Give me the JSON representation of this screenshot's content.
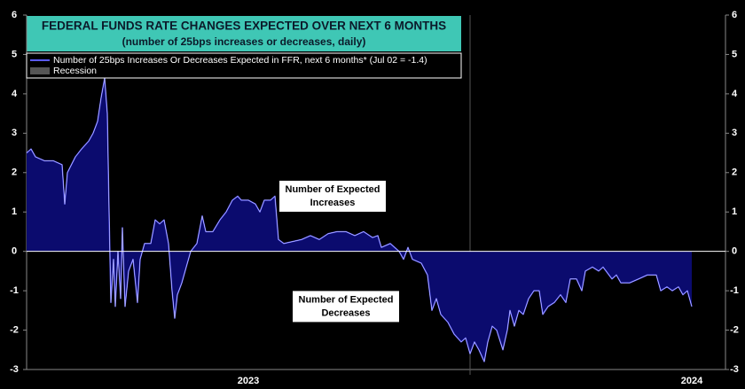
{
  "chart_data": {
    "type": "area",
    "title": "FEDERAL FUNDS RATE CHANGES EXPECTED OVER NEXT 6 MONTHS",
    "subtitle": "(number of 25bps increases or decreases, daily)",
    "x": [
      2023,
      2023.01,
      2023.02,
      2023.04,
      2023.06,
      2023.08,
      2023.086,
      2023.092,
      2023.11,
      2023.124,
      2023.14,
      2023.15,
      2023.16,
      2023.168,
      2023.176,
      2023.182,
      2023.186,
      2023.19,
      2023.196,
      2023.2,
      2023.206,
      2023.212,
      2023.216,
      2023.222,
      2023.23,
      2023.24,
      2023.25,
      2023.256,
      2023.266,
      2023.28,
      2023.29,
      2023.3,
      2023.31,
      2023.32,
      2023.328,
      2023.334,
      2023.34,
      2023.35,
      2023.36,
      2023.37,
      2023.384,
      2023.396,
      2023.404,
      2023.42,
      2023.436,
      2023.45,
      2023.464,
      2023.476,
      2023.484,
      2023.5,
      2023.516,
      2023.526,
      2023.536,
      2023.55,
      2023.56,
      2023.568,
      2023.58,
      2023.6,
      2023.62,
      2023.64,
      2023.66,
      2023.68,
      2023.7,
      2023.72,
      2023.74,
      2023.76,
      2023.78,
      2023.792,
      2023.8,
      2023.82,
      2023.84,
      2023.85,
      2023.86,
      2023.87,
      2023.89,
      2023.904,
      2023.914,
      2023.924,
      2023.934,
      2023.95,
      2023.964,
      2023.98,
      2023.99,
      2024,
      2024.01,
      2024.02,
      2024.032,
      2024.04,
      2024.05,
      2024.06,
      2024.074,
      2024.084,
      2024.09,
      2024.1,
      2024.11,
      2024.12,
      2024.132,
      2024.144,
      2024.156,
      2024.164,
      2024.176,
      2024.19,
      2024.204,
      2024.216,
      2024.226,
      2024.24,
      2024.252,
      2024.26,
      2024.276,
      2024.29,
      2024.3,
      2024.32,
      2024.33,
      2024.34,
      2024.36,
      2024.38,
      2024.4,
      2024.42,
      2024.43,
      2024.444,
      2024.456,
      2024.47,
      2024.48,
      2024.49,
      2024.5
    ],
    "series": [
      {
        "name": "Number of 25bps Increases Or Decreases Expected in FFR, next 6 months* (Jul 02 = -1.4)",
        "color": "#5a5aff",
        "fill": "#0b0b6e",
        "values": [
          2.5,
          2.6,
          2.4,
          2.3,
          2.3,
          2.2,
          1.2,
          2.0,
          2.4,
          2.6,
          2.8,
          3.0,
          3.3,
          3.9,
          4.4,
          3.5,
          1.0,
          -1.3,
          -0.2,
          -1.4,
          0.0,
          -1.2,
          0.6,
          -1.4,
          -0.5,
          -0.2,
          -1.3,
          -0.2,
          0.2,
          0.2,
          0.8,
          0.7,
          0.8,
          0.2,
          -1.0,
          -1.7,
          -1.1,
          -0.8,
          -0.4,
          0.0,
          0.2,
          0.9,
          0.5,
          0.5,
          0.8,
          1.0,
          1.3,
          1.4,
          1.3,
          1.3,
          1.2,
          1.0,
          1.3,
          1.3,
          1.4,
          0.3,
          0.2,
          0.25,
          0.3,
          0.4,
          0.3,
          0.45,
          0.5,
          0.5,
          0.4,
          0.5,
          0.35,
          0.4,
          0.1,
          0.2,
          0.0,
          -0.2,
          0.1,
          -0.2,
          -0.3,
          -0.6,
          -1.5,
          -1.2,
          -1.6,
          -1.8,
          -2.1,
          -2.3,
          -2.2,
          -2.6,
          -2.3,
          -2.5,
          -2.8,
          -2.3,
          -1.9,
          -2.0,
          -2.5,
          -2.0,
          -1.5,
          -1.9,
          -1.5,
          -1.6,
          -1.2,
          -1.0,
          -1.0,
          -1.6,
          -1.4,
          -1.3,
          -1.1,
          -1.3,
          -0.7,
          -0.7,
          -1.0,
          -0.5,
          -0.4,
          -0.5,
          -0.4,
          -0.7,
          -0.6,
          -0.8,
          -0.8,
          -0.7,
          -0.6,
          -0.6,
          -1.0,
          -0.9,
          -1.0,
          -0.9,
          -1.1,
          -1.0,
          -1.4
        ]
      }
    ],
    "legend_extra": [
      {
        "name": "Recession",
        "color": "#555555"
      }
    ],
    "annotations": [
      {
        "lines": [
          "Number of Expected",
          "Increases"
        ],
        "x": 2023.69,
        "y": 1.4
      },
      {
        "lines": [
          "Number of Expected",
          "Decreases"
        ],
        "x": 2023.72,
        "y": -1.4
      }
    ],
    "xlim": [
      2023,
      2024.576
    ],
    "xticks": [
      {
        "value": 2023.5,
        "label": "2023"
      },
      {
        "value": 2024.5,
        "label": "2024"
      }
    ],
    "ylim": [
      -3,
      6
    ],
    "yticks": [
      -3,
      -2,
      -1,
      0,
      1,
      2,
      3,
      4,
      5,
      6
    ]
  }
}
